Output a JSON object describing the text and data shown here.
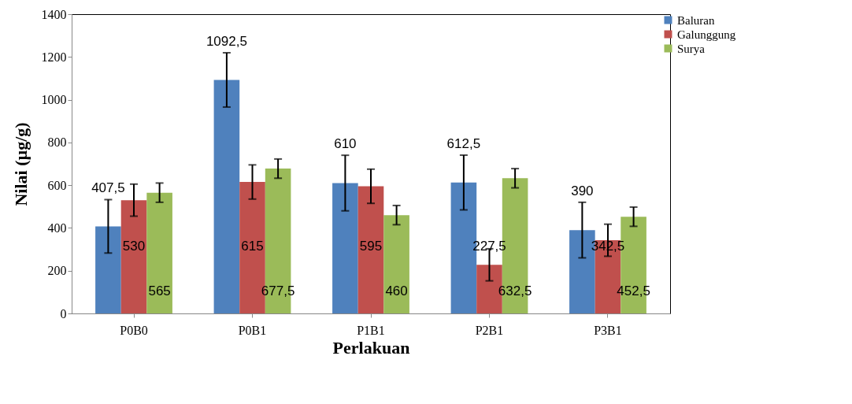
{
  "chart_data": {
    "type": "bar",
    "xlabel": "Perlakuan",
    "ylabel": "Nilai  (µg/g)",
    "categories": [
      "P0B0",
      "P0B1",
      "P1B1",
      "P2B1",
      "P3B1"
    ],
    "series": [
      {
        "name": "Baluran",
        "color": "#4f81bd",
        "values": [
          407.5,
          1092.5,
          610,
          612.5,
          390
        ],
        "errors": [
          125,
          127,
          130,
          128,
          130
        ],
        "value_labels": [
          "407,5",
          "1092,5",
          "610",
          "612,5",
          "390"
        ]
      },
      {
        "name": "Galunggung",
        "color": "#c0504d",
        "values": [
          530,
          615,
          595,
          227.5,
          342.5
        ],
        "errors": [
          75,
          80,
          80,
          75,
          75
        ],
        "value_labels": [
          "530",
          "615",
          "595",
          "227,5",
          "342,5"
        ]
      },
      {
        "name": "Surya",
        "color": "#9bbb59",
        "values": [
          565,
          677.5,
          460,
          632.5,
          452.5
        ],
        "errors": [
          45,
          45,
          45,
          45,
          45
        ],
        "value_labels": [
          "565",
          "677,5",
          "460",
          "632,5",
          "452,5"
        ]
      }
    ],
    "ylim": [
      0,
      1400
    ],
    "yticks": [
      0,
      200,
      400,
      600,
      800,
      1000,
      1200,
      1400
    ],
    "grid": false,
    "legend": "right"
  }
}
